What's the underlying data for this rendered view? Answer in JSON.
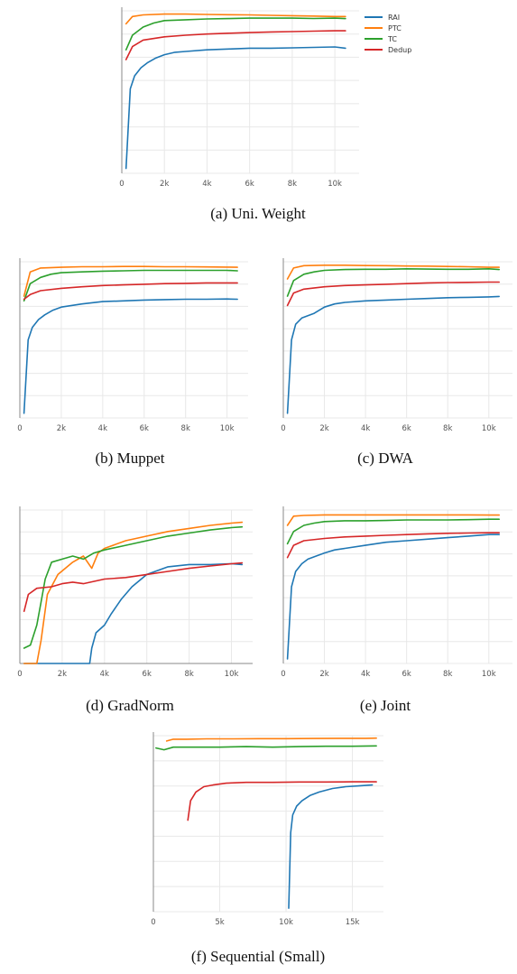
{
  "legend": [
    {
      "label": "RAI",
      "color": "#1f77b4"
    },
    {
      "label": "PTC",
      "color": "#ff7f0e"
    },
    {
      "label": "TC",
      "color": "#2ca02c"
    },
    {
      "label": "Dedup",
      "color": "#d62728"
    }
  ],
  "colors": {
    "RAI": "#1f77b4",
    "PTC": "#ff7f0e",
    "TC": "#2ca02c",
    "Dedup": "#d62728"
  },
  "chart_data": [
    {
      "type": "line",
      "caption": "(a) Uni. Weight",
      "xlim": [
        0,
        10800
      ],
      "ylim": [
        0,
        1
      ],
      "yticks_shown": false,
      "xticks": [
        0,
        2000,
        4000,
        6000,
        8000,
        10000
      ],
      "xtick_labels": [
        "0",
        "2k",
        "4k",
        "6k",
        "8k",
        "10k"
      ],
      "series": [
        {
          "name": "RAI",
          "x": [
            200,
            400,
            600,
            900,
            1200,
            1600,
            2000,
            2500,
            3000,
            4000,
            5000,
            6000,
            7000,
            8000,
            9000,
            10000,
            10500
          ],
          "y": [
            0.03,
            0.52,
            0.6,
            0.65,
            0.68,
            0.71,
            0.73,
            0.745,
            0.75,
            0.76,
            0.765,
            0.77,
            0.77,
            0.772,
            0.775,
            0.778,
            0.77
          ]
        },
        {
          "name": "PTC",
          "x": [
            200,
            500,
            1000,
            2000,
            3000,
            4000,
            5000,
            6000,
            7000,
            8000,
            9000,
            10000,
            10500
          ],
          "y": [
            0.92,
            0.965,
            0.975,
            0.98,
            0.98,
            0.978,
            0.976,
            0.975,
            0.972,
            0.97,
            0.968,
            0.965,
            0.965
          ]
        },
        {
          "name": "TC",
          "x": [
            200,
            500,
            1000,
            1500,
            2000,
            3000,
            4000,
            5000,
            6000,
            7000,
            8000,
            9000,
            10000,
            10500
          ],
          "y": [
            0.76,
            0.85,
            0.9,
            0.925,
            0.94,
            0.945,
            0.95,
            0.952,
            0.955,
            0.955,
            0.955,
            0.953,
            0.955,
            0.952
          ]
        },
        {
          "name": "Dedup",
          "x": [
            200,
            500,
            1000,
            2000,
            3000,
            4000,
            5000,
            6000,
            7000,
            8000,
            9000,
            10000,
            10500
          ],
          "y": [
            0.7,
            0.78,
            0.82,
            0.84,
            0.85,
            0.857,
            0.862,
            0.866,
            0.87,
            0.872,
            0.875,
            0.877,
            0.877
          ]
        }
      ]
    },
    {
      "type": "line",
      "caption": "(b) Muppet",
      "xlim": [
        0,
        10800
      ],
      "ylim": [
        0,
        1
      ],
      "yticks_shown": false,
      "xticks": [
        0,
        2000,
        4000,
        6000,
        8000,
        10000
      ],
      "xtick_labels": [
        "0",
        "2k",
        "4k",
        "6k",
        "8k",
        "10k"
      ],
      "series": [
        {
          "name": "RAI",
          "x": [
            200,
            400,
            600,
            900,
            1200,
            1600,
            2000,
            3000,
            4000,
            5000,
            6000,
            7000,
            8000,
            9000,
            10000,
            10500
          ],
          "y": [
            0.03,
            0.5,
            0.58,
            0.63,
            0.66,
            0.69,
            0.71,
            0.73,
            0.745,
            0.75,
            0.755,
            0.758,
            0.76,
            0.76,
            0.762,
            0.76
          ]
        },
        {
          "name": "PTC",
          "x": [
            200,
            500,
            1000,
            2000,
            3000,
            4000,
            5000,
            6000,
            7000,
            8000,
            9000,
            10000,
            10500
          ],
          "y": [
            0.78,
            0.935,
            0.96,
            0.965,
            0.968,
            0.968,
            0.97,
            0.97,
            0.968,
            0.968,
            0.967,
            0.966,
            0.965
          ]
        },
        {
          "name": "TC",
          "x": [
            200,
            500,
            1000,
            1500,
            2000,
            3000,
            4000,
            5000,
            6000,
            7000,
            8000,
            9000,
            10000,
            10500
          ],
          "y": [
            0.75,
            0.86,
            0.9,
            0.92,
            0.93,
            0.935,
            0.94,
            0.942,
            0.945,
            0.945,
            0.945,
            0.945,
            0.945,
            0.942
          ]
        },
        {
          "name": "Dedup",
          "x": [
            200,
            500,
            1000,
            2000,
            3000,
            4000,
            5000,
            6000,
            7000,
            8000,
            9000,
            10000,
            10500
          ],
          "y": [
            0.76,
            0.79,
            0.815,
            0.83,
            0.84,
            0.848,
            0.852,
            0.856,
            0.86,
            0.862,
            0.865,
            0.865,
            0.865
          ]
        }
      ]
    },
    {
      "type": "line",
      "caption": "(c) DWA",
      "xlim": [
        0,
        10800
      ],
      "ylim": [
        0,
        1
      ],
      "yticks_shown": false,
      "xticks": [
        0,
        2000,
        4000,
        6000,
        8000,
        10000
      ],
      "xtick_labels": [
        "0",
        "2k",
        "4k",
        "6k",
        "8k",
        "10k"
      ],
      "series": [
        {
          "name": "RAI",
          "x": [
            200,
            400,
            600,
            900,
            1500,
            2000,
            2500,
            3000,
            4000,
            5000,
            6000,
            7000,
            8000,
            9000,
            10000,
            10500
          ],
          "y": [
            0.03,
            0.5,
            0.6,
            0.64,
            0.67,
            0.71,
            0.73,
            0.74,
            0.75,
            0.755,
            0.76,
            0.765,
            0.77,
            0.772,
            0.775,
            0.778
          ]
        },
        {
          "name": "PTC",
          "x": [
            200,
            500,
            1000,
            2000,
            3000,
            4000,
            5000,
            6000,
            7000,
            8000,
            9000,
            10000,
            10500
          ],
          "y": [
            0.89,
            0.96,
            0.975,
            0.978,
            0.978,
            0.976,
            0.975,
            0.973,
            0.972,
            0.97,
            0.968,
            0.965,
            0.965
          ]
        },
        {
          "name": "TC",
          "x": [
            200,
            500,
            1000,
            1500,
            2000,
            3000,
            4000,
            5000,
            6000,
            7000,
            8000,
            9000,
            10000,
            10500
          ],
          "y": [
            0.78,
            0.88,
            0.92,
            0.935,
            0.945,
            0.95,
            0.952,
            0.952,
            0.955,
            0.953,
            0.952,
            0.952,
            0.955,
            0.95
          ]
        },
        {
          "name": "Dedup",
          "x": [
            200,
            500,
            1000,
            2000,
            3000,
            4000,
            5000,
            6000,
            7000,
            8000,
            9000,
            10000,
            10500
          ],
          "y": [
            0.72,
            0.8,
            0.825,
            0.84,
            0.848,
            0.852,
            0.856,
            0.86,
            0.865,
            0.867,
            0.868,
            0.87,
            0.87
          ]
        }
      ]
    },
    {
      "type": "line",
      "caption": "(d) GradNorm",
      "xlim": [
        0,
        11000
      ],
      "ylim": [
        0,
        1
      ],
      "yticks_shown": false,
      "xticks": [
        0,
        2000,
        4000,
        6000,
        8000,
        10000
      ],
      "xtick_labels": [
        "0",
        "2k",
        "4k",
        "6k",
        "8k",
        "10k"
      ],
      "series": [
        {
          "name": "RAI",
          "x": [
            200,
            3300,
            3400,
            3600,
            4000,
            4300,
            4800,
            5300,
            6000,
            7000,
            8000,
            9000,
            10000,
            10500
          ],
          "y": [
            0.0,
            0.0,
            0.1,
            0.2,
            0.25,
            0.32,
            0.42,
            0.5,
            0.58,
            0.63,
            0.645,
            0.645,
            0.65,
            0.645
          ]
        },
        {
          "name": "PTC",
          "x": [
            200,
            800,
            1000,
            1300,
            1800,
            2500,
            3000,
            3400,
            3700,
            4000,
            5000,
            6000,
            7000,
            8000,
            9000,
            10000,
            10500
          ],
          "y": [
            0.0,
            0.0,
            0.15,
            0.45,
            0.58,
            0.66,
            0.7,
            0.62,
            0.72,
            0.75,
            0.8,
            0.83,
            0.86,
            0.88,
            0.9,
            0.915,
            0.92
          ]
        },
        {
          "name": "TC",
          "x": [
            200,
            500,
            800,
            1000,
            1200,
            1500,
            2000,
            2500,
            3000,
            3500,
            4000,
            5000,
            6000,
            7000,
            8000,
            9000,
            10000,
            10500
          ],
          "y": [
            0.1,
            0.12,
            0.25,
            0.4,
            0.55,
            0.66,
            0.68,
            0.7,
            0.68,
            0.72,
            0.74,
            0.77,
            0.8,
            0.83,
            0.85,
            0.87,
            0.885,
            0.89
          ]
        },
        {
          "name": "Dedup",
          "x": [
            200,
            400,
            800,
            1500,
            2000,
            2500,
            3000,
            4000,
            5000,
            6000,
            7000,
            8000,
            9000,
            10000,
            10500
          ],
          "y": [
            0.34,
            0.45,
            0.49,
            0.5,
            0.52,
            0.53,
            0.52,
            0.55,
            0.56,
            0.58,
            0.6,
            0.62,
            0.635,
            0.65,
            0.655
          ]
        }
      ]
    },
    {
      "type": "line",
      "caption": "(e) Joint",
      "xlim": [
        0,
        10800
      ],
      "ylim": [
        0,
        1
      ],
      "yticks_shown": false,
      "xticks": [
        0,
        2000,
        4000,
        6000,
        8000,
        10000
      ],
      "xtick_labels": [
        "0",
        "2k",
        "4k",
        "6k",
        "8k",
        "10k"
      ],
      "series": [
        {
          "name": "RAI",
          "x": [
            200,
            400,
            600,
            900,
            1200,
            1600,
            2000,
            2500,
            3000,
            4000,
            5000,
            6000,
            7000,
            8000,
            9000,
            10000,
            10500
          ],
          "y": [
            0.03,
            0.5,
            0.6,
            0.65,
            0.68,
            0.7,
            0.72,
            0.74,
            0.75,
            0.77,
            0.79,
            0.8,
            0.81,
            0.82,
            0.83,
            0.84,
            0.84
          ]
        },
        {
          "name": "PTC",
          "x": [
            200,
            500,
            1000,
            2000,
            3000,
            4000,
            5000,
            6000,
            7000,
            8000,
            9000,
            10000,
            10500
          ],
          "y": [
            0.9,
            0.96,
            0.965,
            0.968,
            0.968,
            0.968,
            0.968,
            0.968,
            0.968,
            0.968,
            0.968,
            0.967,
            0.967
          ]
        },
        {
          "name": "TC",
          "x": [
            200,
            500,
            1000,
            1500,
            2000,
            3000,
            4000,
            5000,
            6000,
            7000,
            8000,
            9000,
            10000,
            10500
          ],
          "y": [
            0.78,
            0.86,
            0.9,
            0.915,
            0.925,
            0.93,
            0.93,
            0.932,
            0.935,
            0.935,
            0.935,
            0.937,
            0.94,
            0.94
          ]
        },
        {
          "name": "Dedup",
          "x": [
            200,
            500,
            1000,
            2000,
            3000,
            4000,
            5000,
            6000,
            7000,
            8000,
            9000,
            10000,
            10500
          ],
          "y": [
            0.69,
            0.77,
            0.8,
            0.815,
            0.825,
            0.83,
            0.835,
            0.84,
            0.845,
            0.848,
            0.85,
            0.852,
            0.852
          ]
        }
      ]
    },
    {
      "type": "line",
      "caption": "(f) Sequential (Small)",
      "xlim": [
        0,
        17000
      ],
      "ylim": [
        0,
        1
      ],
      "yticks_shown": false,
      "xticks": [
        0,
        5000,
        10000,
        15000
      ],
      "xtick_labels": [
        "0",
        "5k",
        "10k",
        "15k"
      ],
      "series": [
        {
          "name": "RAI",
          "x": [
            10200,
            10350,
            10500,
            10800,
            11200,
            11800,
            12500,
            13500,
            14500,
            15500,
            16500
          ],
          "y": [
            0.02,
            0.45,
            0.55,
            0.6,
            0.63,
            0.66,
            0.68,
            0.7,
            0.71,
            0.715,
            0.72
          ]
        },
        {
          "name": "PTC",
          "x": [
            1000,
            1500,
            2500,
            4000,
            6000,
            8000,
            10000,
            12000,
            14000,
            16000,
            16800
          ],
          "y": [
            0.97,
            0.98,
            0.98,
            0.982,
            0.982,
            0.983,
            0.983,
            0.984,
            0.985,
            0.985,
            0.986
          ]
        },
        {
          "name": "TC",
          "x": [
            200,
            800,
            1500,
            3000,
            5000,
            7000,
            9000,
            11000,
            13000,
            15000,
            16800
          ],
          "y": [
            0.93,
            0.92,
            0.935,
            0.935,
            0.935,
            0.938,
            0.935,
            0.938,
            0.94,
            0.94,
            0.942
          ]
        },
        {
          "name": "Dedup",
          "x": [
            2600,
            2800,
            3200,
            3800,
            4500,
            5500,
            7000,
            9000,
            11000,
            13000,
            15000,
            16800
          ],
          "y": [
            0.52,
            0.63,
            0.68,
            0.71,
            0.72,
            0.73,
            0.735,
            0.735,
            0.737,
            0.737,
            0.738,
            0.738
          ]
        }
      ]
    }
  ]
}
